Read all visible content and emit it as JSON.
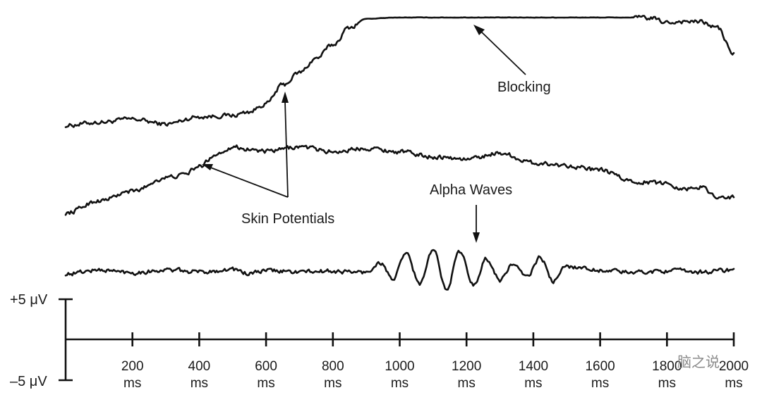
{
  "chart_data": {
    "type": "line",
    "x_unit": "ms",
    "x_ticks": [
      "200",
      "400",
      "600",
      "800",
      "1000",
      "1200",
      "1400",
      "1600",
      "1800",
      "2000"
    ],
    "x_range": [
      0,
      2000
    ],
    "y_scale_labels": [
      "+5 μV",
      "–5 μV"
    ],
    "series": [
      {
        "x": [
          0,
          100,
          200,
          300,
          400,
          500,
          550,
          600,
          650,
          700,
          750,
          800,
          850,
          900,
          1000,
          1200,
          1400,
          1600,
          1700,
          1750,
          1800,
          1850,
          1900,
          1950,
          2000
        ],
        "y": [
          0,
          0.5,
          1,
          0.2,
          1.4,
          1.6,
          2.2,
          3.5,
          6.5,
          8.5,
          10.8,
          13,
          15.8,
          17.2,
          17.4,
          17.4,
          17.4,
          17.4,
          17.4,
          17.3,
          16.6,
          16.8,
          16.7,
          15.8,
          11.5
        ]
      },
      {
        "x": [
          0,
          100,
          200,
          300,
          350,
          400,
          450,
          500,
          550,
          600,
          700,
          800,
          900,
          1000,
          1100,
          1200,
          1300,
          1400,
          1500,
          1600,
          1700,
          1800,
          1850,
          1900,
          1950,
          2000
        ],
        "y": [
          -4.5,
          -2.5,
          -1,
          1.2,
          1.6,
          3,
          5,
          6.2,
          5.8,
          5.4,
          6.2,
          5.4,
          6,
          5.4,
          4.6,
          4.2,
          5.2,
          3.6,
          3.2,
          2.4,
          0.6,
          0.3,
          -0.6,
          -0.3,
          -1.8,
          -2
        ]
      },
      {
        "x": [
          0,
          100,
          200,
          300,
          400,
          500,
          550,
          600,
          700,
          800,
          900,
          940,
          980,
          1020,
          1060,
          1100,
          1140,
          1180,
          1220,
          1260,
          1300,
          1340,
          1380,
          1420,
          1460,
          1500,
          1600,
          1700,
          1800,
          1900,
          2000
        ],
        "y": [
          -1,
          -0.4,
          -0.8,
          -0.4,
          -0.7,
          -0.3,
          -1,
          -0.5,
          -0.7,
          -0.6,
          -0.8,
          0.8,
          -1.8,
          2.2,
          -2.6,
          2.8,
          -3.3,
          2.6,
          -2.8,
          1.4,
          -2,
          0.6,
          -1.6,
          1.6,
          -2.2,
          0.2,
          -0.4,
          -0.8,
          -0.5,
          -0.7,
          -0.4
        ]
      }
    ],
    "annotations": [
      "Blocking",
      "Skin Potentials",
      "Alpha Waves"
    ]
  },
  "watermark": "脑之说"
}
